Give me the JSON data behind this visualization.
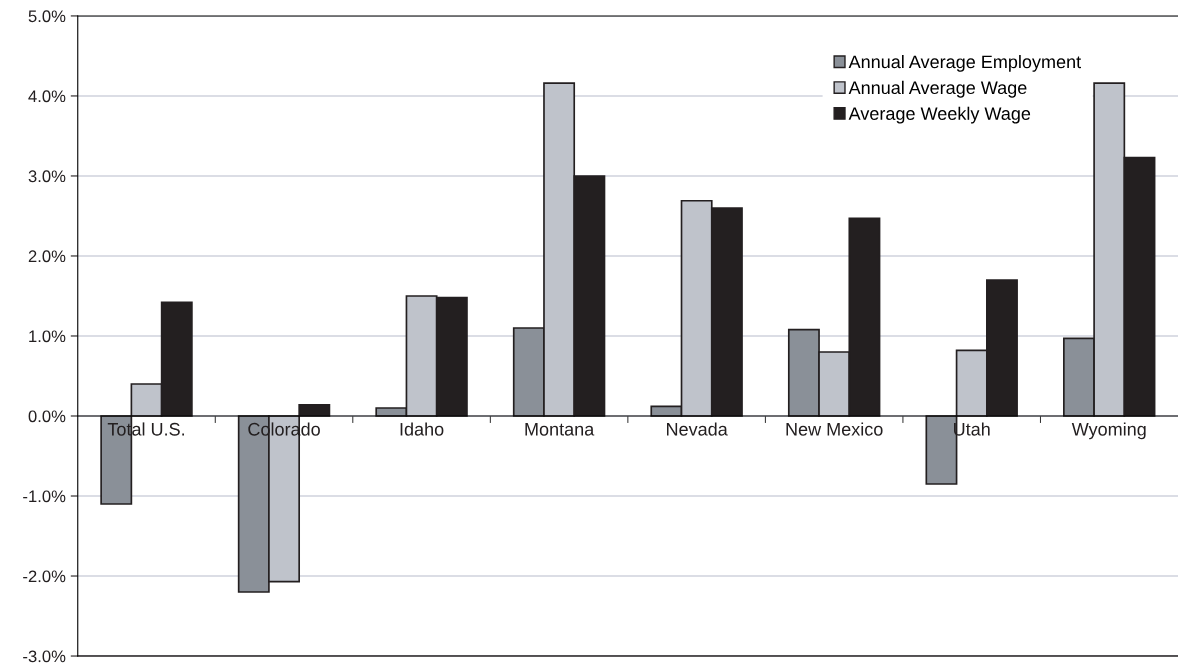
{
  "chart_data": {
    "type": "bar",
    "categories": [
      "Total U.S.",
      "Colorado",
      "Idaho",
      "Montana",
      "Nevada",
      "New Mexico",
      "Utah",
      "Wyoming"
    ],
    "series": [
      {
        "name": "Annual Average Employment",
        "color": "#8a9098",
        "values": [
          -1.1,
          -2.2,
          0.1,
          1.1,
          0.12,
          1.08,
          -0.85,
          0.97
        ]
      },
      {
        "name": "Annual Average Wage",
        "color": "#bfc3cb",
        "values": [
          0.4,
          -2.07,
          1.5,
          4.16,
          2.69,
          0.8,
          0.82,
          4.16
        ]
      },
      {
        "name": "Average Weekly Wage",
        "color": "#231f20",
        "values": [
          1.42,
          0.14,
          1.48,
          3.0,
          2.6,
          2.47,
          1.7,
          3.23
        ]
      }
    ],
    "ylim": [
      -3,
      5
    ],
    "yticks": [
      {
        "value": -3,
        "label": "-3.0%"
      },
      {
        "value": -2,
        "label": "-2.0%"
      },
      {
        "value": -1,
        "label": "-1.0%"
      },
      {
        "value": 0,
        "label": "0.0%"
      },
      {
        "value": 1,
        "label": "1.0%"
      },
      {
        "value": 2,
        "label": "2.0%"
      },
      {
        "value": 3,
        "label": "3.0%"
      },
      {
        "value": 4,
        "label": "4.0%"
      },
      {
        "value": 5,
        "label": "5.0%"
      }
    ],
    "grid": "y",
    "legend": "top right"
  }
}
